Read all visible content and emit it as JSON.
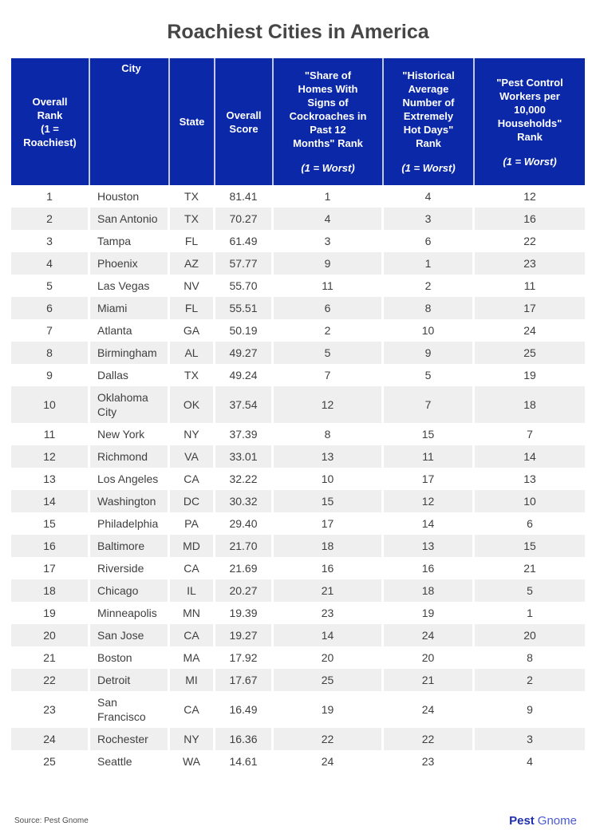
{
  "title": "Roachiest Cities in America",
  "source_note": "Source: Pest Gnome",
  "brand": {
    "bold_part": "Pest",
    "regular_part": "Gnome"
  },
  "colors": {
    "header_bg": "#0b28a8",
    "header_text": "#ffffff",
    "row_stripe": "#efefef",
    "body_text": "#3f3f3f",
    "title_text": "#464646",
    "brand_bold": "#1f2fae",
    "brand_regular": "#4a5ad2"
  },
  "table": {
    "header_cells": [
      {
        "main": "Overall\nRank\n(1 =\nRoachiest)",
        "sub": null
      },
      {
        "main": "City",
        "sub": null
      },
      {
        "main": "State",
        "sub": null
      },
      {
        "main": "Overall\nScore",
        "sub": null
      },
      {
        "main": "\"Share of\nHomes With\nSigns of\nCockroaches in\nPast 12\nMonths\" Rank",
        "sub": "(1 = Worst)"
      },
      {
        "main": "\"Historical\nAverage\nNumber of\nExtremely\nHot Days\"\nRank",
        "sub": "(1 = Worst)"
      },
      {
        "main": "\"Pest Control\nWorkers per\n10,000\nHouseholds\"\nRank",
        "sub": "(1 = Worst)"
      }
    ]
  },
  "chart_data": {
    "type": "table",
    "title": "Roachiest Cities in America",
    "columns": [
      "Overall Rank (1 = Roachiest)",
      "City",
      "State",
      "Overall Score",
      "\"Share of Homes With Signs of Cockroaches in Past 12 Months\" Rank (1 = Worst)",
      "\"Historical Average Number of Extremely Hot Days\" Rank (1 = Worst)",
      "\"Pest Control Workers per 10,000 Households\" Rank (1 = Worst)"
    ],
    "rows": [
      [
        1,
        "Houston",
        "TX",
        "81.41",
        1,
        4,
        12
      ],
      [
        2,
        "San Antonio",
        "TX",
        "70.27",
        4,
        3,
        16
      ],
      [
        3,
        "Tampa",
        "FL",
        "61.49",
        3,
        6,
        22
      ],
      [
        4,
        "Phoenix",
        "AZ",
        "57.77",
        9,
        1,
        23
      ],
      [
        5,
        "Las Vegas",
        "NV",
        "55.70",
        11,
        2,
        11
      ],
      [
        6,
        "Miami",
        "FL",
        "55.51",
        6,
        8,
        17
      ],
      [
        7,
        "Atlanta",
        "GA",
        "50.19",
        2,
        10,
        24
      ],
      [
        8,
        "Birmingham",
        "AL",
        "49.27",
        5,
        9,
        25
      ],
      [
        9,
        "Dallas",
        "TX",
        "49.24",
        7,
        5,
        19
      ],
      [
        10,
        "Oklahoma City",
        "OK",
        "37.54",
        12,
        7,
        18
      ],
      [
        11,
        "New York",
        "NY",
        "37.39",
        8,
        15,
        7
      ],
      [
        12,
        "Richmond",
        "VA",
        "33.01",
        13,
        11,
        14
      ],
      [
        13,
        "Los Angeles",
        "CA",
        "32.22",
        10,
        17,
        13
      ],
      [
        14,
        "Washington",
        "DC",
        "30.32",
        15,
        12,
        10
      ],
      [
        15,
        "Philadelphia",
        "PA",
        "29.40",
        17,
        14,
        6
      ],
      [
        16,
        "Baltimore",
        "MD",
        "21.70",
        18,
        13,
        15
      ],
      [
        17,
        "Riverside",
        "CA",
        "21.69",
        16,
        16,
        21
      ],
      [
        18,
        "Chicago",
        "IL",
        "20.27",
        21,
        18,
        5
      ],
      [
        19,
        "Minneapolis",
        "MN",
        "19.39",
        23,
        19,
        1
      ],
      [
        20,
        "San Jose",
        "CA",
        "19.27",
        14,
        24,
        20
      ],
      [
        21,
        "Boston",
        "MA",
        "17.92",
        20,
        20,
        8
      ],
      [
        22,
        "Detroit",
        "MI",
        "17.67",
        25,
        21,
        2
      ],
      [
        23,
        "San Francisco",
        "CA",
        "16.49",
        19,
        24,
        9
      ],
      [
        24,
        "Rochester",
        "NY",
        "16.36",
        22,
        22,
        3
      ],
      [
        25,
        "Seattle",
        "WA",
        "14.61",
        24,
        23,
        4
      ]
    ]
  }
}
